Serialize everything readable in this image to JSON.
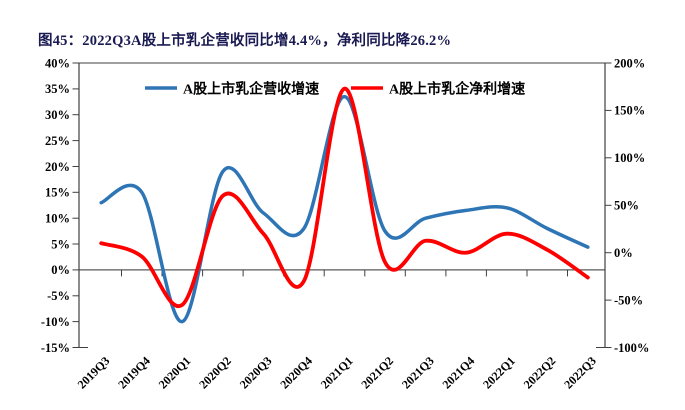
{
  "figure": {
    "title": "图45：2022Q3A股上市乳企营收同比增4.4%，净利同比降26.2%",
    "title_color": "#1A1A52"
  },
  "chart_data": {
    "type": "line",
    "title": "",
    "categories": [
      "2019Q3",
      "2019Q4",
      "2020Q1",
      "2020Q2",
      "2020Q3",
      "2020Q4",
      "2021Q1",
      "2021Q2",
      "2021Q3",
      "2021Q4",
      "2022Q1",
      "2022Q2",
      "2022Q3"
    ],
    "series": [
      {
        "name": "A股上市乳企营收增速",
        "axis": "left",
        "color": "#2E75B6",
        "values": [
          13,
          15,
          -10,
          19,
          11,
          8,
          33.5,
          7.5,
          10,
          11.5,
          12,
          8,
          4.4
        ]
      },
      {
        "name": "A股上市乳企净利增速",
        "axis": "right",
        "color": "#FE0000",
        "values": [
          10,
          -4,
          -55,
          60,
          20,
          -30,
          173,
          -10,
          12.5,
          0,
          20,
          3,
          -26.2
        ]
      }
    ],
    "left_axis": {
      "min": -15,
      "max": 40,
      "step": 5,
      "tick_labels": [
        "40%",
        "35%",
        "30%",
        "25%",
        "20%",
        "15%",
        "10%",
        "5%",
        "0%",
        "-5%",
        "-10%",
        "-15%"
      ]
    },
    "right_axis": {
      "min": -100,
      "max": 200,
      "step": 50,
      "tick_labels": [
        "200%",
        "150%",
        "100%",
        "50%",
        "0%",
        "-50%",
        "-100%"
      ]
    },
    "legend_position": "top-center",
    "grid": false,
    "zero_line": true,
    "x_tick_rotation": 45,
    "axis_color": "#404040",
    "zero_line_color": "#595959"
  }
}
